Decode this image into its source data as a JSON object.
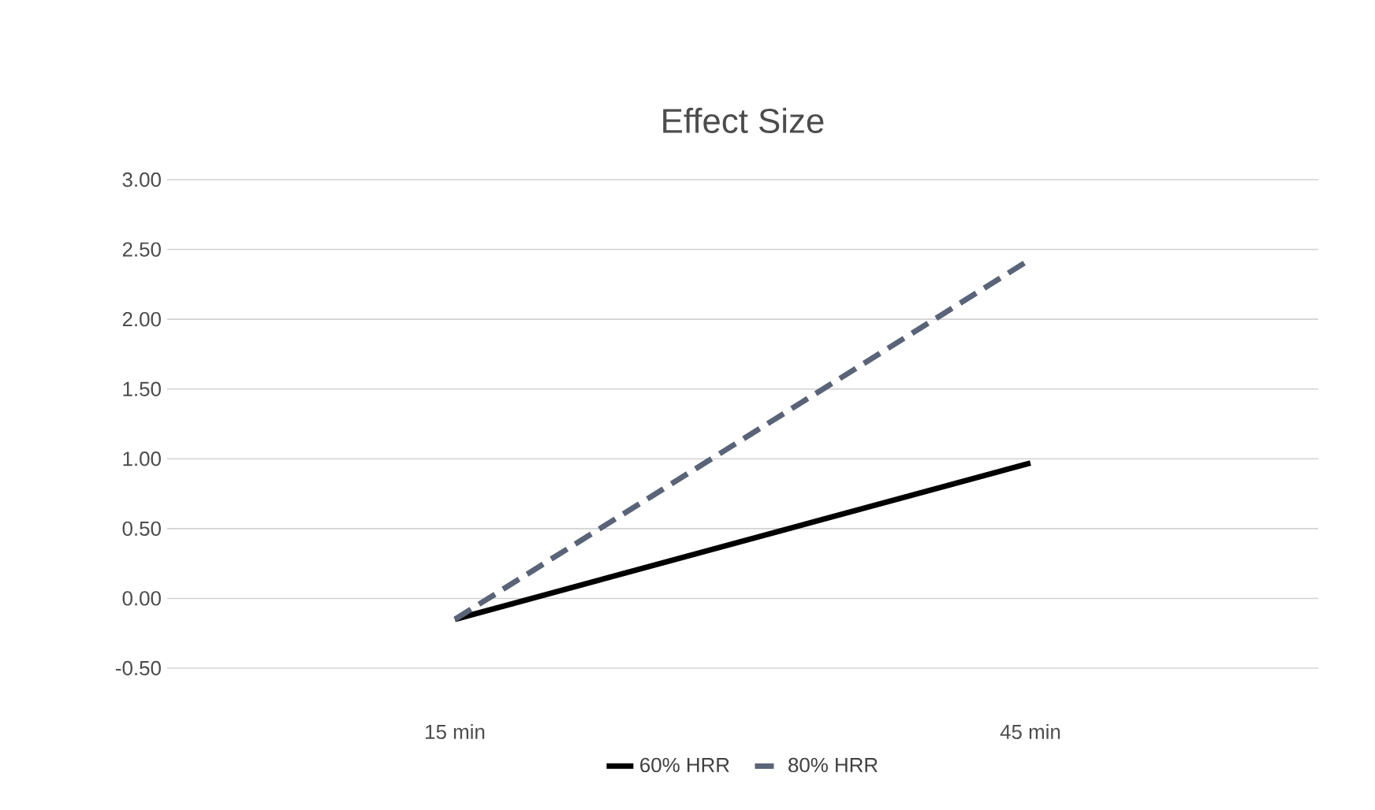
{
  "chart_data": {
    "type": "line",
    "title": "Effect Size",
    "categories": [
      "15 min",
      "45 min"
    ],
    "series": [
      {
        "name": "60% HRR",
        "color": "#000000",
        "line_style": "solid",
        "values": [
          -0.15,
          0.97
        ]
      },
      {
        "name": "80% HRR",
        "color": "#5a6478",
        "line_style": "dashed",
        "values": [
          -0.15,
          2.43
        ]
      }
    ],
    "ylim": [
      -0.5,
      3.0
    ],
    "yticks": [
      {
        "value": -0.5,
        "label": "-0.50"
      },
      {
        "value": 0,
        "label": "0.00"
      },
      {
        "value": 0.5,
        "label": "0.50"
      },
      {
        "value": 1.0,
        "label": "1.00"
      },
      {
        "value": 1.5,
        "label": "1.50"
      },
      {
        "value": 2.0,
        "label": "2.00"
      },
      {
        "value": 2.5,
        "label": "2.50"
      },
      {
        "value": 3.0,
        "label": "3.00"
      }
    ],
    "grid": "y",
    "legend": "bottom",
    "marker": "none"
  }
}
